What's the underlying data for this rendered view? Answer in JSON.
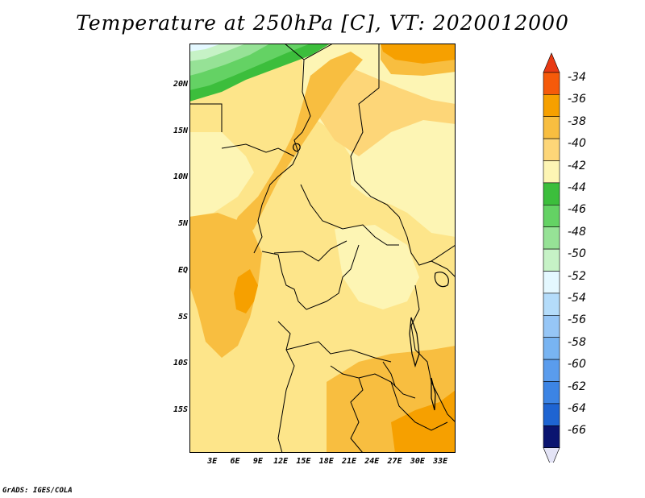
{
  "title": "Temperature at 250hPa [C], VT: 2020012000",
  "credit": "GrADS: IGES/COLA",
  "map": {
    "projection": "latlon",
    "lon_range": [
      0,
      35
    ],
    "lat_range": [
      -19.5,
      24.5
    ],
    "lat_labels": [
      {
        "lat": 20,
        "text": "20N"
      },
      {
        "lat": 15,
        "text": "15N"
      },
      {
        "lat": 10,
        "text": "10N"
      },
      {
        "lat": 5,
        "text": "5N"
      },
      {
        "lat": 0,
        "text": "EQ"
      },
      {
        "lat": -5,
        "text": "5S"
      },
      {
        "lat": -10,
        "text": "10S"
      },
      {
        "lat": -15,
        "text": "15S"
      }
    ],
    "lon_labels": [
      {
        "lon": 3,
        "text": "3E"
      },
      {
        "lon": 6,
        "text": "6E"
      },
      {
        "lon": 9,
        "text": "9E"
      },
      {
        "lon": 12,
        "text": "12E"
      },
      {
        "lon": 15,
        "text": "15E"
      },
      {
        "lon": 18,
        "text": "18E"
      },
      {
        "lon": 21,
        "text": "21E"
      },
      {
        "lon": 24,
        "text": "24E"
      },
      {
        "lon": 27,
        "text": "27E"
      },
      {
        "lon": 30,
        "text": "30E"
      },
      {
        "lon": 33,
        "text": "33E"
      }
    ],
    "background_color": "#fde58a"
  },
  "colorbar": {
    "top_arrow_color": "#e83a14",
    "bottom_arrow_color": "#e4e4f6",
    "levels": [
      {
        "value": "-34",
        "color": "#f55a0a"
      },
      {
        "value": "-36",
        "color": "#f6a000"
      },
      {
        "value": "-38",
        "color": "#f8be40"
      },
      {
        "value": "-40",
        "color": "#fdd678"
      },
      {
        "value": "-42",
        "color": "#fdf5b4"
      },
      {
        "value": "-44",
        "color": "#3cbe3c"
      },
      {
        "value": "-46",
        "color": "#64d264"
      },
      {
        "value": "-48",
        "color": "#96e296"
      },
      {
        "value": "-50",
        "color": "#c6f2c6"
      },
      {
        "value": "-52",
        "color": "#e4f8ff"
      },
      {
        "value": "-54",
        "color": "#b4dcfa"
      },
      {
        "value": "-56",
        "color": "#96c6f6"
      },
      {
        "value": "-58",
        "color": "#78b4f2"
      },
      {
        "value": "-60",
        "color": "#5a9ced"
      },
      {
        "value": "-62",
        "color": "#3c84e4"
      },
      {
        "value": "-64",
        "color": "#1e64d2"
      },
      {
        "value": "-66",
        "color": "#0a3ca8"
      }
    ],
    "last_band_color": "#0a1470"
  }
}
